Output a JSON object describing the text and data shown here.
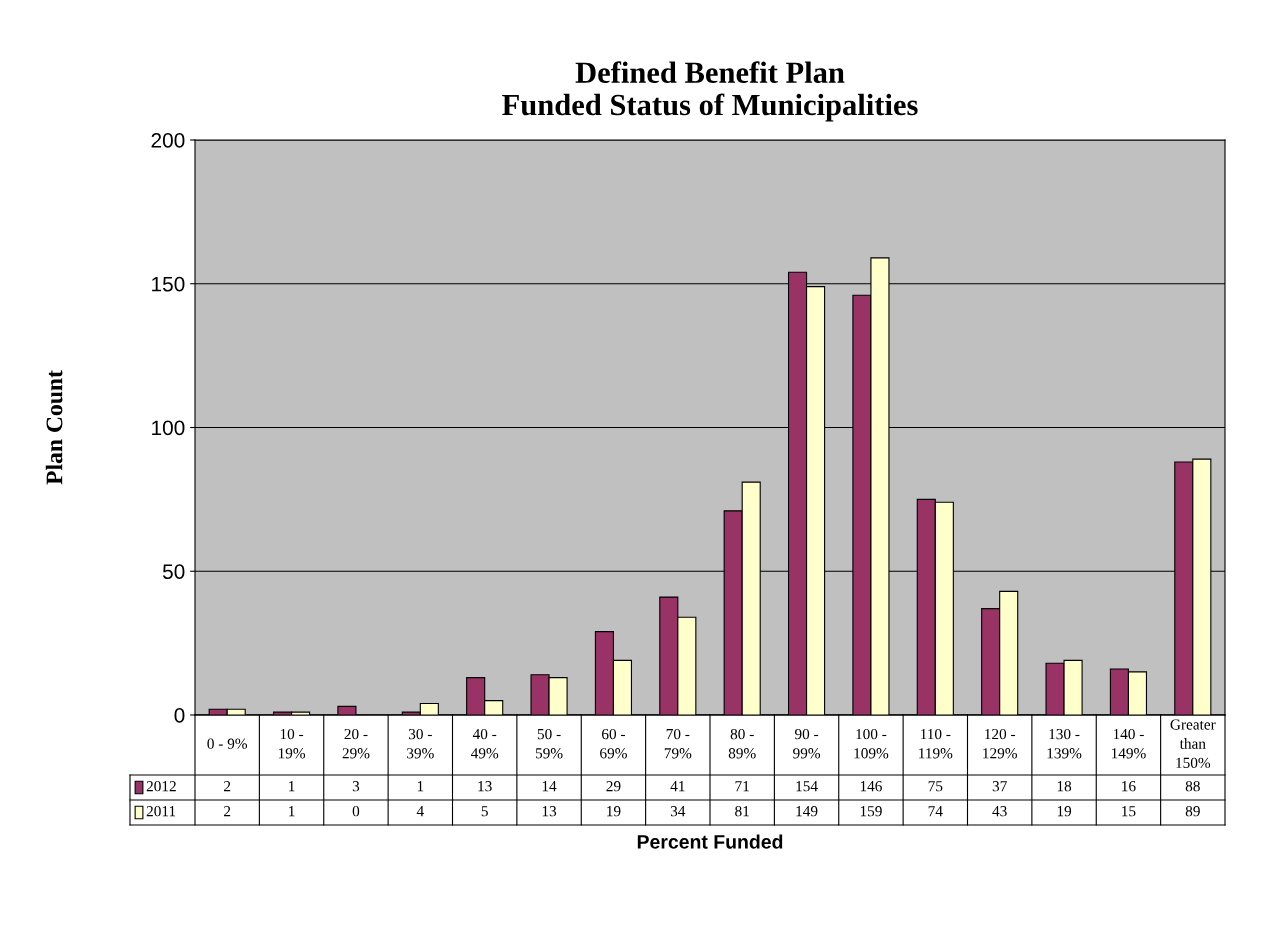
{
  "chart_data": {
    "type": "bar",
    "title": "Defined Benefit Plan\nFunded Status of Municipalities",
    "xlabel": "Percent Funded",
    "ylabel": "Plan Count",
    "categories": [
      "0 - 9%",
      "10 -\n19%",
      "20 -\n29%",
      "30 -\n39%",
      "40 -\n49%",
      "50 -\n59%",
      "60 -\n69%",
      "70 -\n79%",
      "80 -\n89%",
      "90 -\n99%",
      "100 -\n109%",
      "110 -\n119%",
      "120 -\n129%",
      "130 -\n139%",
      "140 -\n149%",
      "Greater\nthan\n150%"
    ],
    "series": [
      {
        "name": "2012",
        "color": "#993366",
        "values": [
          2,
          1,
          3,
          1,
          13,
          14,
          29,
          41,
          71,
          154,
          146,
          75,
          37,
          18,
          16,
          88
        ]
      },
      {
        "name": "2011",
        "color": "#ffffcc",
        "values": [
          2,
          1,
          0,
          4,
          5,
          13,
          19,
          34,
          81,
          149,
          159,
          74,
          43,
          19,
          15,
          89
        ]
      }
    ],
    "ylim": [
      0,
      200
    ],
    "yticks": [
      0,
      50,
      100,
      150,
      200
    ],
    "grid": "y",
    "data_labels": true,
    "legend": "bottom left"
  }
}
